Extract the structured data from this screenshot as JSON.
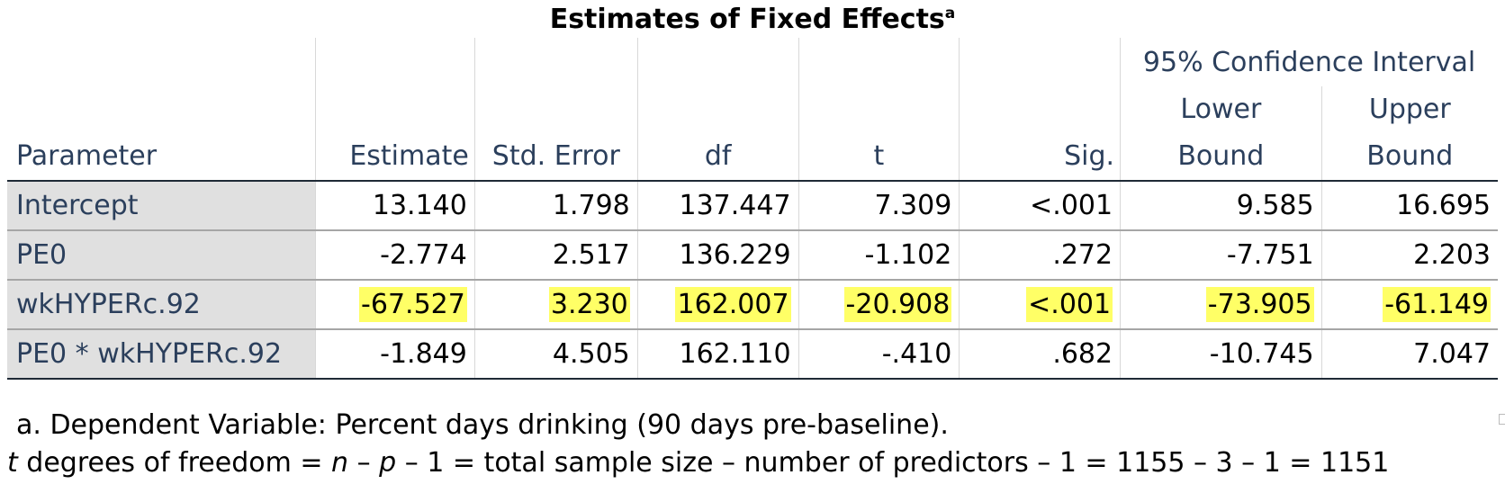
{
  "title": "Estimates of Fixed Effects",
  "title_superscript": "a",
  "header": {
    "ci_group": "95% Confidence Interval",
    "columns": {
      "parameter": "Parameter",
      "estimate": "Estimate",
      "std_error": "Std. Error",
      "df": "df",
      "t": "t",
      "sig": "Sig.",
      "lower_1": "Lower",
      "lower_2": "Bound",
      "upper_1": "Upper",
      "upper_2": "Bound"
    }
  },
  "rows": [
    {
      "parameter": "Intercept",
      "estimate": "13.140",
      "std_error": "1.798",
      "df": "137.447",
      "t": "7.309",
      "sig": "<.001",
      "lower": "9.585",
      "upper": "16.695",
      "highlighted": false
    },
    {
      "parameter": "PE0",
      "estimate": "-2.774",
      "std_error": "2.517",
      "df": "136.229",
      "t": "-1.102",
      "sig": ".272",
      "lower": "-7.751",
      "upper": "2.203",
      "highlighted": false
    },
    {
      "parameter": "wkHYPERc.92",
      "estimate": "-67.527",
      "std_error": "3.230",
      "df": "162.007",
      "t": "-20.908",
      "sig": "<.001",
      "lower": "-73.905",
      "upper": "-61.149",
      "highlighted": true
    },
    {
      "parameter": "PE0 * wkHYPERc.92",
      "estimate": "-1.849",
      "std_error": "4.505",
      "df": "162.110",
      "t": "-.410",
      "sig": ".682",
      "lower": "-10.745",
      "upper": "7.047",
      "highlighted": false
    }
  ],
  "highlight_color": "#ffff66",
  "notes": {
    "footnote_a": "a. Dependent Variable: Percent days drinking (90 days pre-baseline).",
    "formula": {
      "t": "t",
      "part1": " degrees of freedom = ",
      "n": "n",
      "part2": " – ",
      "p": "p",
      "part3": " – 1 = total sample size – number of predictors – 1 = 1155 – 3 – 1 = 1151"
    }
  }
}
